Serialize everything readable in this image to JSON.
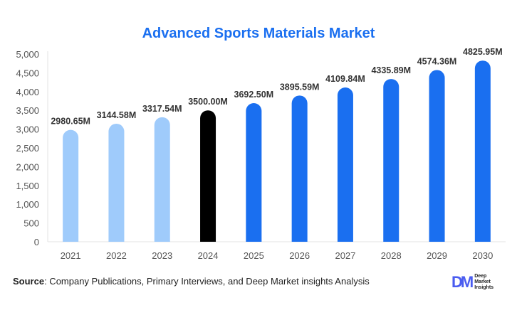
{
  "chart_data": {
    "type": "bar",
    "title": "Advanced Sports Materials Market",
    "categories": [
      "2021",
      "2022",
      "2023",
      "2024",
      "2025",
      "2026",
      "2027",
      "2028",
      "2029",
      "2030"
    ],
    "values": [
      2980.65,
      3144.58,
      3317.54,
      3500.0,
      3692.5,
      3895.59,
      4109.84,
      4335.89,
      4574.36,
      4825.95
    ],
    "data_labels": [
      "2980.65M",
      "3144.58M",
      "3317.54M",
      "3500.00M",
      "3692.50M",
      "3895.59M",
      "4109.84M",
      "4335.89M",
      "4574.36M",
      "4825.95M"
    ],
    "ylim": [
      0,
      5000
    ],
    "yticks": [
      0,
      500,
      1000,
      1500,
      2000,
      2500,
      3000,
      3500,
      4000,
      4500,
      5000
    ],
    "ytick_labels": [
      "0",
      "500",
      "1,000",
      "1,500",
      "2,000",
      "2,500",
      "3,000",
      "3,500",
      "4,000",
      "4,500",
      "5,000"
    ],
    "grid": false,
    "bar_colors": [
      "#9fcbfb",
      "#9fcbfb",
      "#9fcbfb",
      "#000000",
      "#1a6ff0",
      "#1a6ff0",
      "#1a6ff0",
      "#1a6ff0",
      "#1a6ff0",
      "#1a6ff0"
    ],
    "title_color": "#1a6ff0"
  },
  "source": {
    "label": "Source",
    "text": ": Company Publications, Primary Interviews, and Deep Market insights Analysis"
  },
  "logo": {
    "mark": "DM",
    "lines": [
      "Deep",
      "Market",
      "Insights"
    ]
  }
}
